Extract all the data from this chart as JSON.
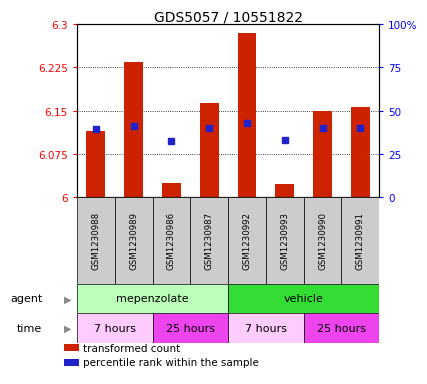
{
  "title": "GDS5057 / 10551822",
  "samples": [
    "GSM1230988",
    "GSM1230989",
    "GSM1230986",
    "GSM1230987",
    "GSM1230992",
    "GSM1230993",
    "GSM1230990",
    "GSM1230991"
  ],
  "bar_tops": [
    6.115,
    6.235,
    6.025,
    6.163,
    6.285,
    6.022,
    6.15,
    6.157
  ],
  "bar_bottoms": [
    6.0,
    6.0,
    6.0,
    6.0,
    6.0,
    6.0,
    6.0,
    6.0
  ],
  "percentile_values": [
    6.118,
    6.123,
    6.097,
    6.12,
    6.128,
    6.1,
    6.12,
    6.12
  ],
  "ylim_left": [
    6.0,
    6.3
  ],
  "ylim_right": [
    0,
    100
  ],
  "yticks_left": [
    6.0,
    6.075,
    6.15,
    6.225,
    6.3
  ],
  "yticks_right": [
    0,
    25,
    50,
    75,
    100
  ],
  "ytick_labels_left": [
    "6",
    "6.075",
    "6.15",
    "6.225",
    "6.3"
  ],
  "ytick_labels_right": [
    "0",
    "25",
    "50",
    "75",
    "100%"
  ],
  "bar_color": "#cc2200",
  "percentile_color": "#2222cc",
  "agent_groups": [
    {
      "label": "mepenzolate",
      "start": 0,
      "end": 4,
      "color": "#bbffbb"
    },
    {
      "label": "vehicle",
      "start": 4,
      "end": 8,
      "color": "#33dd33"
    }
  ],
  "time_groups": [
    {
      "label": "7 hours",
      "start": 0,
      "end": 2,
      "color": "#ffccff"
    },
    {
      "label": "25 hours",
      "start": 2,
      "end": 4,
      "color": "#ee44ee"
    },
    {
      "label": "7 hours",
      "start": 4,
      "end": 6,
      "color": "#ffccff"
    },
    {
      "label": "25 hours",
      "start": 6,
      "end": 8,
      "color": "#ee44ee"
    }
  ],
  "legend_items": [
    {
      "label": "transformed count",
      "color": "#cc2200"
    },
    {
      "label": "percentile rank within the sample",
      "color": "#2222cc"
    }
  ],
  "sample_bg_color": "#cccccc",
  "bar_width": 0.5
}
